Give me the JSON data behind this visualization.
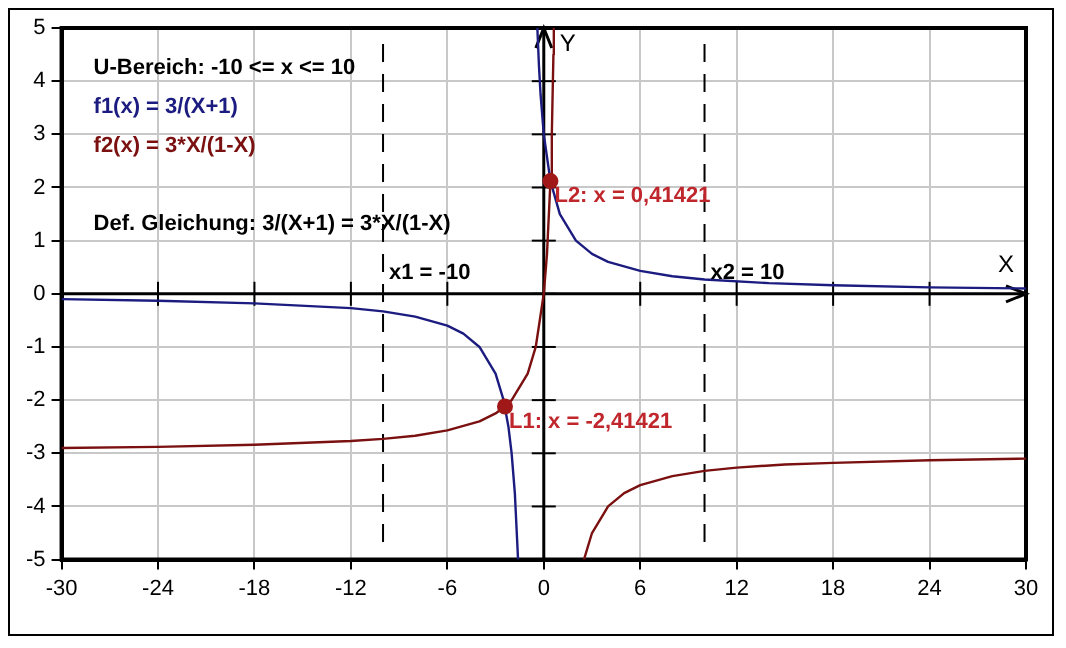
{
  "chart_data": {
    "type": "line",
    "xlabel": "X",
    "ylabel": "Y",
    "xlim": [
      -30,
      30
    ],
    "xticks": [
      -30,
      -24,
      -18,
      -12,
      -6,
      0,
      6,
      12,
      18,
      24,
      30
    ],
    "ylim": [
      -5,
      5
    ],
    "yticks": [
      -5,
      -4,
      -3,
      -2,
      -1,
      0,
      1,
      2,
      3,
      4,
      5
    ],
    "grid": true,
    "legend": "top left",
    "marker": "none",
    "line_style": "solid",
    "series": [
      {
        "name": "f1(x) = 3/(X+1)",
        "color": "#1c1c80",
        "x": [
          -30,
          -24,
          -18,
          -12,
          -10,
          -8,
          -6,
          -5,
          -4,
          -3,
          -2.5,
          -2.2,
          -2,
          -1.8,
          -1.6,
          -1,
          -0.4,
          -0.3,
          -0.2,
          0,
          0.41421,
          1,
          2,
          3,
          4,
          6,
          8,
          10,
          14,
          18,
          24,
          30
        ],
        "values": [
          -0.1,
          -0.13,
          -0.18,
          -0.27,
          -0.33,
          -0.43,
          -0.6,
          -0.75,
          -1,
          -1.5,
          -2,
          -2.5,
          -3,
          -3.75,
          -5,
          null,
          5,
          4.29,
          3.75,
          3,
          2.12,
          1.5,
          1,
          0.75,
          0.6,
          0.43,
          0.33,
          0.27,
          0.2,
          0.16,
          0.12,
          0.1
        ]
      },
      {
        "name": "f2(x) = 3*X/(1-X)",
        "color": "#7a1010",
        "x": [
          -30,
          -24,
          -18,
          -12,
          -10,
          -8,
          -6,
          -4,
          -3,
          -2.41421,
          -2,
          -1,
          -0.5,
          0,
          0.2,
          0.41421,
          0.5,
          0.6,
          0.625,
          1,
          2.5,
          3,
          4,
          5,
          6,
          8,
          10,
          12,
          15,
          18,
          24,
          30
        ],
        "values": [
          -2.9,
          -2.88,
          -2.84,
          -2.77,
          -2.73,
          -2.67,
          -2.57,
          -2.4,
          -2.25,
          -2.12,
          -2,
          -1.5,
          -1,
          0,
          0.75,
          2.12,
          3,
          4.5,
          5,
          null,
          -5,
          -4.5,
          -4,
          -3.75,
          -3.6,
          -3.43,
          -3.33,
          -3.27,
          -3.21,
          -3.18,
          -3.13,
          -3.1
        ]
      },
      {
        "type": "scatter",
        "color": "#a01818",
        "marker": "circle",
        "x": [
          -2.41421,
          0.41421
        ],
        "values": [
          -2.12,
          2.12
        ]
      }
    ],
    "ref_lines": [
      {
        "axis": "x",
        "value": -10,
        "label": "x1 = -10",
        "line_style": "dashed",
        "color": "#000000"
      },
      {
        "axis": "x",
        "value": 10,
        "label": "x2 = 10",
        "line_style": "dashed",
        "color": "#000000"
      }
    ],
    "annotations": [
      "U-Bereich: -10 <= x <= 10",
      "Def. Gleichung: 3/(X+1) = 3*X/(1-X)",
      {
        "text": "L1: x = -2,41421",
        "x": -2.41421,
        "y": -2.12
      },
      {
        "text": "L2: x = 0,41421",
        "x": 0.41421,
        "y": 2.12
      }
    ]
  }
}
